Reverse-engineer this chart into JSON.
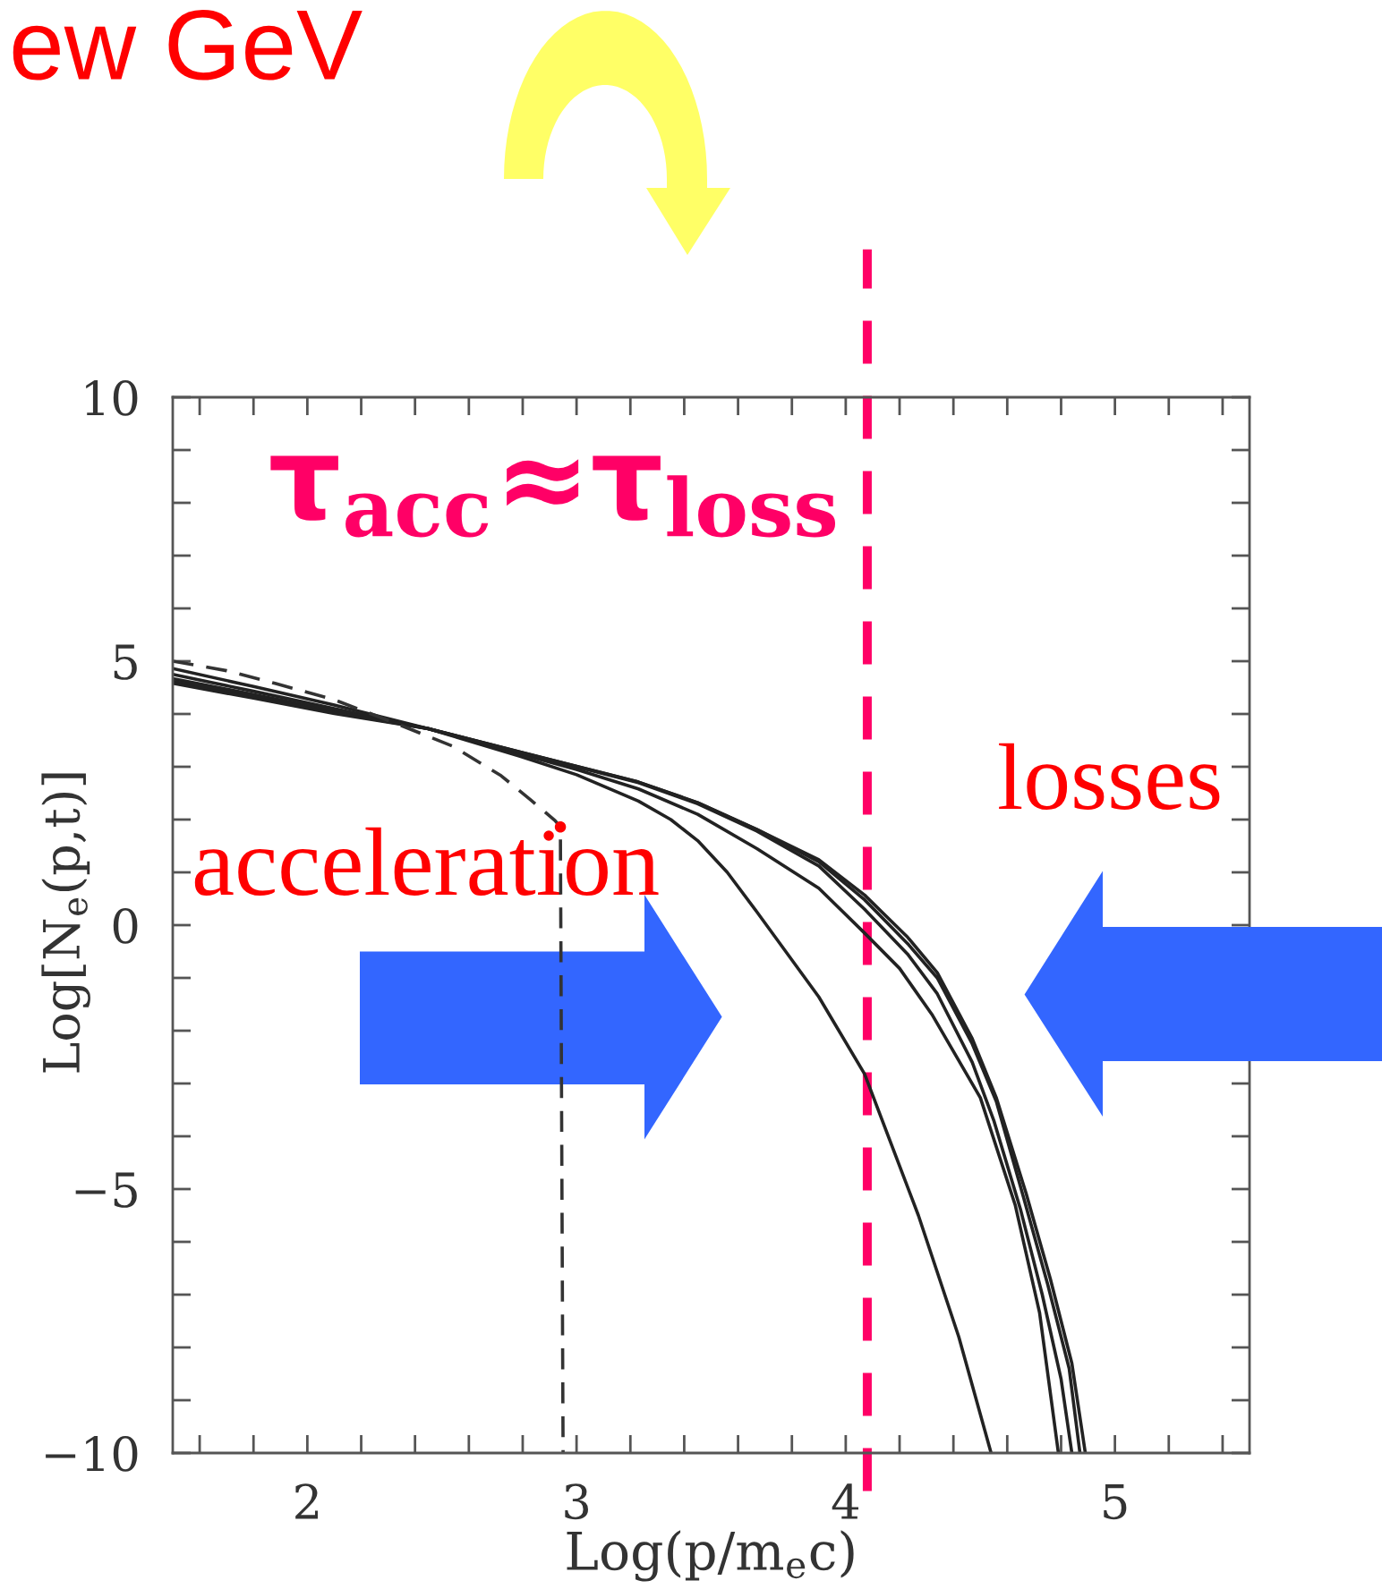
{
  "chart_data": {
    "type": "line",
    "title": "ew GeV",
    "xlabel": "Log(p/m$_{e}$c)",
    "ylabel": "Log[N$_{e}$(p,t)]",
    "annotations": [
      "acceleration",
      "losses"
    ],
    "xlim": [
      1.5,
      5.5
    ],
    "ylim": [
      -10,
      10
    ],
    "xticks": [
      {
        "value": 1.6,
        "label": null
      },
      {
        "value": 1.8,
        "label": null
      },
      2,
      {
        "value": 2.2,
        "label": null
      },
      {
        "value": 2.4,
        "label": null
      },
      {
        "value": 2.6,
        "label": null
      },
      {
        "value": 2.8,
        "label": null
      },
      3,
      {
        "value": 3.2,
        "label": null
      },
      {
        "value": 3.4,
        "label": null
      },
      {
        "value": 3.6,
        "label": null
      },
      {
        "value": 3.8,
        "label": null
      },
      4,
      {
        "value": 4.2,
        "label": null
      },
      {
        "value": 4.4,
        "label": null
      },
      {
        "value": 4.6,
        "label": null
      },
      {
        "value": 4.8,
        "label": null
      },
      5,
      {
        "value": 5.2,
        "label": null
      },
      {
        "value": 5.4,
        "label": null
      }
    ],
    "yticks": [
      {
        "value": -10,
        "label": "−10"
      },
      {
        "value": -9,
        "label": null
      },
      {
        "value": -8,
        "label": null
      },
      {
        "value": -7,
        "label": null
      },
      {
        "value": -6,
        "label": null
      },
      {
        "value": -5,
        "label": "−5"
      },
      {
        "value": -4,
        "label": null
      },
      {
        "value": -3,
        "label": null
      },
      {
        "value": -2,
        "label": null
      },
      {
        "value": -1,
        "label": null
      },
      0,
      {
        "value": 1,
        "label": null
      },
      {
        "value": 2,
        "label": null
      },
      {
        "value": 3,
        "label": null
      },
      {
        "value": 4,
        "label": null
      },
      5,
      {
        "value": 6,
        "label": null
      },
      {
        "value": 7,
        "label": null
      },
      {
        "value": 8,
        "label": null
      },
      {
        "value": 9,
        "label": null
      },
      10
    ],
    "ref_lines": [
      {
        "axis": "x",
        "value": 4.08,
        "label": "τ$_{acc}$≈τ$_{loss}$",
        "color": "#ff0066",
        "line_style": "dashed"
      }
    ],
    "series": [
      {
        "color": "#222222",
        "line_style": "solid",
        "x": [
          1.5,
          1.8,
          2.1,
          2.45,
          2.79,
          3.0,
          3.23,
          3.35,
          3.45,
          3.56,
          3.67,
          3.9,
          4.07,
          4.27,
          4.42,
          4.54
        ],
        "values": [
          4.86,
          4.52,
          4.17,
          3.72,
          3.2,
          2.85,
          2.35,
          2.0,
          1.6,
          1.0,
          0.25,
          -1.36,
          -2.82,
          -5.5,
          -7.8,
          -10.0
        ]
      },
      {
        "color": "#222222",
        "line_style": "solid",
        "x": [
          1.5,
          1.8,
          2.1,
          2.45,
          2.79,
          3.0,
          3.23,
          3.45,
          3.67,
          3.9,
          4.07,
          4.2,
          4.32,
          4.5,
          4.63,
          4.72,
          4.79
        ],
        "values": [
          4.75,
          4.43,
          4.1,
          3.72,
          3.24,
          2.95,
          2.58,
          2.1,
          1.45,
          0.7,
          -0.15,
          -0.82,
          -1.69,
          -3.27,
          -5.31,
          -7.34,
          -10.0
        ]
      },
      {
        "color": "#222222",
        "line_style": "solid",
        "x": [
          1.5,
          1.8,
          2.1,
          2.45,
          2.79,
          3.0,
          3.23,
          3.45,
          3.67,
          3.9,
          4.07,
          4.23,
          4.34,
          4.47,
          4.55,
          4.65,
          4.73,
          4.8,
          4.84
        ],
        "values": [
          4.67,
          4.37,
          4.06,
          3.72,
          3.27,
          3.0,
          2.7,
          2.3,
          1.78,
          1.12,
          0.3,
          -0.55,
          -1.3,
          -2.6,
          -3.7,
          -5.4,
          -7.0,
          -8.6,
          -10.0
        ]
      },
      {
        "color": "#222222",
        "line_style": "solid",
        "x": [
          1.5,
          1.8,
          2.1,
          2.45,
          2.79,
          3.0,
          3.23,
          3.45,
          3.67,
          3.9,
          4.07,
          4.23,
          4.34,
          4.47,
          4.56,
          4.66,
          4.75,
          4.83,
          4.87
        ],
        "values": [
          4.62,
          4.33,
          4.03,
          3.72,
          3.28,
          3.01,
          2.71,
          2.32,
          1.81,
          1.2,
          0.48,
          -0.35,
          -1.0,
          -2.25,
          -3.35,
          -5.15,
          -6.8,
          -8.4,
          -10.0
        ]
      },
      {
        "color": "#222222",
        "line_style": "solid",
        "x": [
          1.5,
          1.8,
          2.1,
          2.45,
          2.79,
          3.0,
          3.23,
          3.45,
          3.67,
          3.9,
          4.07,
          4.23,
          4.34,
          4.47,
          4.56,
          4.67,
          4.76,
          4.84,
          4.89
        ],
        "values": [
          4.58,
          4.3,
          4.01,
          3.72,
          3.28,
          3.01,
          2.71,
          2.32,
          1.81,
          1.24,
          0.57,
          -0.23,
          -0.9,
          -2.15,
          -3.28,
          -5.08,
          -6.7,
          -8.3,
          -10.0
        ]
      },
      {
        "color": "#333333",
        "line_style": "dashed",
        "x": [
          1.5,
          1.7,
          1.88,
          2.1,
          2.32,
          2.54,
          2.72,
          2.83,
          2.92,
          2.94,
          2.95
        ],
        "values": [
          5.0,
          4.82,
          4.58,
          4.27,
          3.84,
          3.39,
          2.83,
          2.37,
          1.98,
          1.86,
          -10.0
        ]
      },
      {
        "type": "scatter",
        "color": "#ff0000",
        "marker": "circle",
        "x": [
          2.94
        ],
        "values": [
          1.86
        ]
      }
    ]
  }
}
